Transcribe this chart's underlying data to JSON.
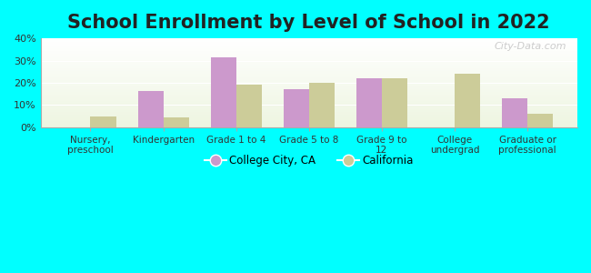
{
  "title": "School Enrollment by Level of School in 2022",
  "categories": [
    "Nursery,\npreschool",
    "Kindergarten",
    "Grade 1 to 4",
    "Grade 5 to 8",
    "Grade 9 to\n12",
    "College\nundergrad",
    "Graduate or\nprofessional"
  ],
  "city_values": [
    0,
    16.5,
    31.5,
    17.0,
    22.0,
    0,
    13.0
  ],
  "state_values": [
    5.0,
    4.5,
    19.0,
    20.0,
    22.0,
    24.0,
    6.0
  ],
  "city_color": "#cc99cc",
  "state_color": "#cccc99",
  "city_label": "College City, CA",
  "state_label": "California",
  "ylim": [
    0,
    40
  ],
  "yticks": [
    0,
    10,
    20,
    30,
    40
  ],
  "background_color": "#00ffff",
  "title_fontsize": 15,
  "bar_width": 0.35
}
